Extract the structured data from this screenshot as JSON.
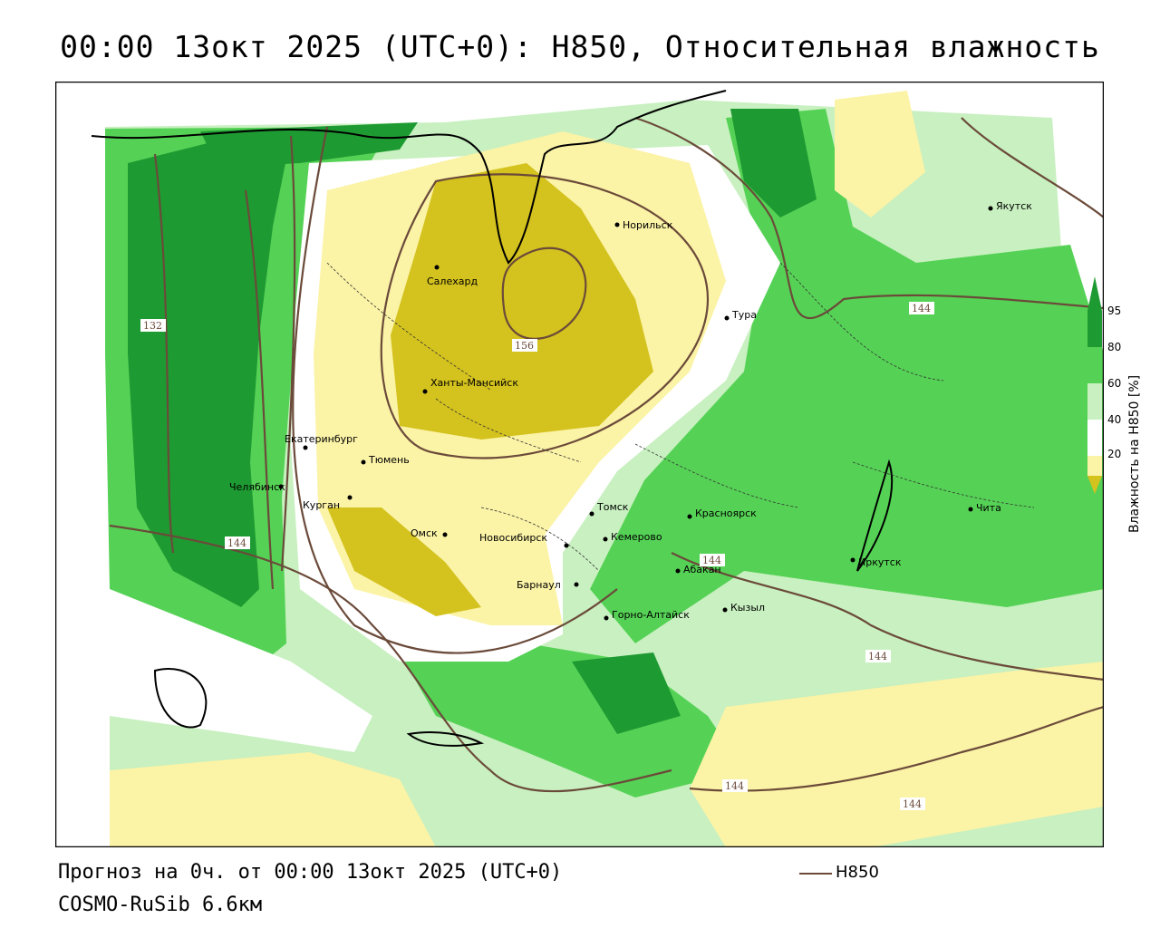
{
  "title": "00:00 13окт 2025 (UTC+0): H850, Относительная влажность",
  "footer": {
    "forecast": "Прогноз на 0ч. от 00:00 13окт 2025 (UTC+0)",
    "model": "COSMO-RuSib 6.6км"
  },
  "legend": {
    "line_label": "H850",
    "line_color": "#6b4a3a"
  },
  "colorbar": {
    "title": "Влажность на H850 [%]",
    "ticks": [
      "95",
      "80",
      "60",
      "40",
      "20"
    ],
    "colors": {
      "very_dry": "#d4c21e",
      "dry": "#fbf3a6",
      "neutral": "#ffffff",
      "moist": "#c8f0c0",
      "wet": "#55d255",
      "very_wet": "#1e9a32"
    }
  },
  "isolines": {
    "labels": [
      "132",
      "144",
      "156",
      "144",
      "144",
      "144",
      "144",
      "144"
    ]
  },
  "cities": [
    {
      "name": "Норильск"
    },
    {
      "name": "Якутск"
    },
    {
      "name": "Салехард"
    },
    {
      "name": "Тура"
    },
    {
      "name": "Ханты-Мансийск"
    },
    {
      "name": "Екатеринбург"
    },
    {
      "name": "Тюмень"
    },
    {
      "name": "Челябинск"
    },
    {
      "name": "Курган"
    },
    {
      "name": "Омск"
    },
    {
      "name": "Новосибирск"
    },
    {
      "name": "Томск"
    },
    {
      "name": "Кемерово"
    },
    {
      "name": "Красноярск"
    },
    {
      "name": "Барнаул"
    },
    {
      "name": "Абакан"
    },
    {
      "name": "Горно-Алтайск"
    },
    {
      "name": "Кызыл"
    },
    {
      "name": "Иркутск"
    },
    {
      "name": "Чита"
    }
  ]
}
